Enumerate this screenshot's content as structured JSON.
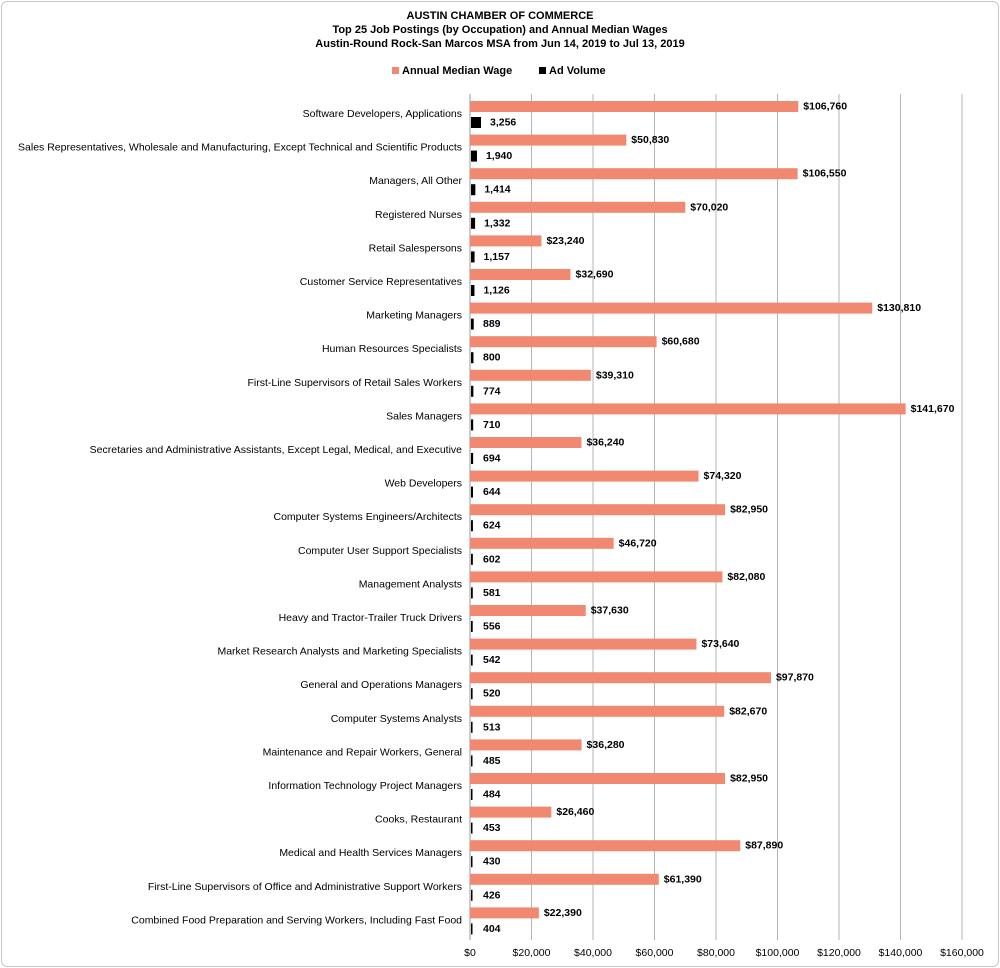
{
  "chart_data": {
    "type": "bar",
    "orientation": "horizontal",
    "title": [
      "AUSTIN CHAMBER  OF COMMERCE",
      "Top 25 Job Postings (by Occupation) and Annual Median Wages",
      "Austin-Round  Rock-San Marcos MSA from Jun 14, 2019 to Jul 13, 2019"
    ],
    "legend_position": "top",
    "grid": true,
    "xlim": [
      0,
      160000
    ],
    "x_ticks": [
      0,
      20000,
      40000,
      60000,
      80000,
      100000,
      120000,
      140000,
      160000
    ],
    "x_tick_labels": [
      "$0",
      "$20,000",
      "$40,000",
      "$60,000",
      "$80,000",
      "$100,000",
      "$120,000",
      "$140,000",
      "$160,000"
    ],
    "categories": [
      "Software Developers, Applications",
      "Sales Representatives, Wholesale and Manufacturing, Except Technical and Scientific Products",
      "Managers, All Other",
      "Registered Nurses",
      "Retail Salespersons",
      "Customer Service Representatives",
      "Marketing Managers",
      "Human Resources Specialists",
      "First-Line Supervisors of Retail Sales Workers",
      "Sales Managers",
      "Secretaries and Administrative Assistants, Except Legal, Medical, and Executive",
      "Web Developers",
      "Computer Systems Engineers/Architects",
      "Computer User Support Specialists",
      "Management Analysts",
      "Heavy and Tractor-Trailer Truck Drivers",
      "Market Research Analysts and Marketing Specialists",
      "General and Operations Managers",
      "Computer Systems Analysts",
      "Maintenance and Repair Workers, General",
      "Information Technology Project Managers",
      "Cooks, Restaurant",
      "Medical and Health Services Managers",
      "First-Line Supervisors of Office and Administrative Support Workers",
      "Combined Food Preparation and Serving Workers, Including Fast Food"
    ],
    "series": [
      {
        "name": "Annual Median Wage",
        "color": "#f0896f",
        "values": [
          106760,
          50830,
          106550,
          70020,
          23240,
          32690,
          130810,
          60680,
          39310,
          141670,
          36240,
          74320,
          82950,
          46720,
          82080,
          37630,
          73640,
          97870,
          82670,
          36280,
          82950,
          26460,
          87890,
          61390,
          22390
        ],
        "labels": [
          "$106,760",
          "$50,830",
          "$106,550",
          "$70,020",
          "$23,240",
          "$32,690",
          "$130,810",
          "$60,680",
          "$39,310",
          "$141,670",
          "$36,240",
          "$74,320",
          "$82,950",
          "$46,720",
          "$82,080",
          "$37,630",
          "$73,640",
          "$97,870",
          "$82,670",
          "$36,280",
          "$82,950",
          "$26,460",
          "$87,890",
          "$61,390",
          "$22,390"
        ]
      },
      {
        "name": "Ad Volume",
        "color": "#000000",
        "values": [
          3256,
          1940,
          1414,
          1332,
          1157,
          1126,
          889,
          800,
          774,
          710,
          694,
          644,
          624,
          602,
          581,
          556,
          542,
          520,
          513,
          485,
          484,
          453,
          430,
          426,
          404
        ],
        "labels": [
          "3,256",
          "1,940",
          "1,414",
          "1,332",
          "1,157",
          "1,126",
          "889",
          "800",
          "774",
          "710",
          "694",
          "644",
          "624",
          "602",
          "581",
          "556",
          "542",
          "520",
          "513",
          "485",
          "484",
          "453",
          "430",
          "426",
          "404"
        ]
      }
    ]
  }
}
